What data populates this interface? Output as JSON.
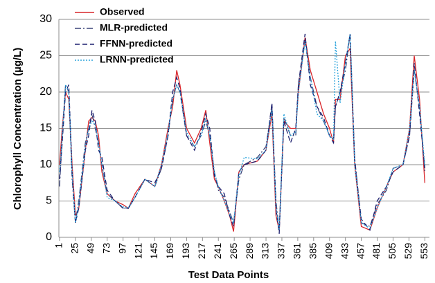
{
  "chart_data": {
    "type": "line",
    "x_label": "Test Data Points",
    "y_label": "Chlorophyll Concentration (µg/L)",
    "x": [
      1,
      5,
      10,
      15,
      20,
      25,
      30,
      40,
      45,
      50,
      55,
      60,
      65,
      73,
      85,
      97,
      105,
      115,
      130,
      145,
      155,
      165,
      172,
      178,
      183,
      193,
      205,
      215,
      222,
      228,
      235,
      241,
      250,
      258,
      264,
      272,
      280,
      300,
      313,
      322,
      328,
      333,
      340,
      350,
      358,
      362,
      372,
      380,
      390,
      400,
      409,
      415,
      418,
      425,
      433,
      440,
      447,
      457,
      470,
      481,
      495,
      505,
      520,
      530,
      537,
      545,
      553
    ],
    "series": [
      {
        "name": "Observed",
        "color": "#d9262b",
        "dash": "none",
        "values": [
          10,
          15,
          20,
          19,
          10,
          3,
          4,
          12,
          16,
          16.5,
          16,
          14,
          9,
          6,
          5,
          4.5,
          4,
          6,
          8,
          7,
          10,
          15,
          18,
          23,
          21,
          15,
          13,
          15,
          17.5,
          13,
          8,
          7,
          5,
          3,
          0.8,
          9,
          10,
          10.5,
          12,
          17,
          3,
          1,
          16,
          15,
          15,
          20,
          27.5,
          23,
          20,
          17,
          15,
          13,
          19,
          19,
          25,
          26,
          10,
          1.5,
          1,
          4,
          7,
          9,
          10,
          15,
          25,
          19,
          7.5
        ]
      },
      {
        "name": "MLR-predicted",
        "color": "#3a4378",
        "dash": "9 3 2 3",
        "values": [
          7,
          14,
          21,
          20,
          8,
          2,
          5,
          13,
          15,
          17,
          15,
          13,
          10,
          6,
          5,
          4,
          4,
          5.5,
          8,
          7,
          9.5,
          14,
          19,
          21,
          20,
          14,
          12.5,
          14,
          16,
          14,
          9,
          6.5,
          5.5,
          3.5,
          2,
          8,
          10,
          11,
          12.5,
          18,
          5,
          1,
          16.5,
          14,
          14,
          21,
          27,
          22,
          18,
          16,
          14,
          13.5,
          18,
          20,
          23,
          28,
          11,
          2,
          1.5,
          4.5,
          6.5,
          9.5,
          10,
          14,
          23,
          18,
          9
        ]
      },
      {
        "name": "FFNN-predicted",
        "color": "#1c1f6e",
        "dash": "7 4",
        "values": [
          8,
          13,
          20,
          21,
          9,
          2,
          4,
          12,
          14,
          17.5,
          16,
          12,
          11,
          6.5,
          5,
          4,
          4,
          5.5,
          8,
          7.5,
          9.5,
          14,
          20,
          22,
          20.5,
          14,
          12,
          14.5,
          17,
          15,
          8.5,
          7,
          6,
          3,
          1.5,
          9,
          10,
          10.5,
          12,
          18.5,
          4,
          0.5,
          16,
          13,
          15,
          21,
          28,
          21,
          18,
          16.5,
          14,
          13,
          18,
          20,
          24,
          28,
          10.5,
          2.5,
          1,
          5,
          7,
          9,
          10,
          14,
          24,
          17,
          9.5
        ]
      },
      {
        "name": "LRNN-predicted",
        "color": "#2aa3dc",
        "dash": "2 2",
        "values": [
          9,
          14,
          21,
          20,
          9,
          2,
          4.5,
          12.5,
          15,
          16,
          15.5,
          13,
          10,
          5.5,
          5,
          4.2,
          4.1,
          5.5,
          8,
          7,
          10,
          14.5,
          19,
          21,
          20,
          14.5,
          12.5,
          14,
          16.5,
          14,
          9,
          7,
          5,
          3.2,
          2,
          8.5,
          11,
          10.8,
          12,
          17.5,
          4,
          1,
          17,
          14,
          14.5,
          20,
          27,
          22,
          17,
          16,
          14,
          13.5,
          27,
          18.5,
          24,
          28,
          10,
          2,
          1.2,
          4,
          7,
          9.5,
          10,
          15,
          23,
          18,
          10
        ]
      }
    ],
    "xlim": [
      0,
      560
    ],
    "xticks": [
      1,
      25,
      49,
      73,
      97,
      121,
      145,
      169,
      193,
      217,
      241,
      265,
      289,
      313,
      337,
      361,
      385,
      409,
      433,
      457,
      481,
      505,
      529,
      553
    ],
    "ylim": [
      0,
      30
    ],
    "yticks": [
      0,
      5,
      10,
      15,
      20,
      25,
      30
    ],
    "grid": true,
    "legend": "upper left"
  }
}
